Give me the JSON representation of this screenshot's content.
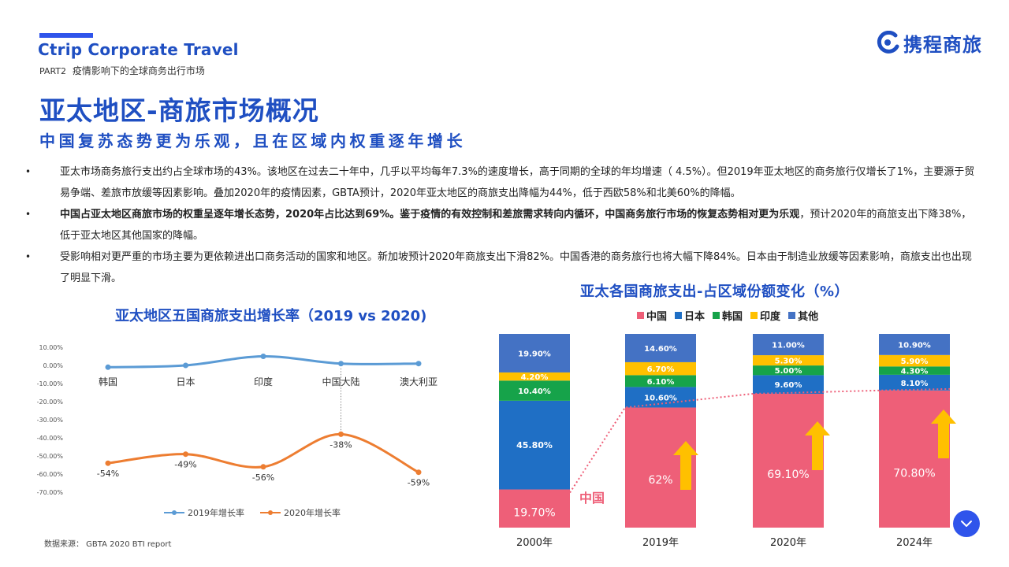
{
  "header": {
    "brand": "Ctrip Corporate Travel",
    "part_label": "PART2",
    "part_title": "疫情影响下的全球商务出行市场",
    "logo_text": "携程商旅"
  },
  "title": "亚太地区-商旅市场概况",
  "subtitle": "中国复苏态势更为乐观，且在区域内权重逐年增长",
  "bullets": [
    {
      "dot": "•",
      "parts": [
        {
          "text": "亚太市场商务旅行支出约占全球市场的43%。该地区在过去二十年中，几乎以平均每年7.3%的速度增长，高于同期的全球的年均增速（ 4.5%）。但2019年亚太地区的商务旅行仅增长了1%，主要源于贸易争端、差旅市放缓等因素影响。叠加2020年的疫情因素，GBTA预计，2020年亚太地区的商旅支出降幅为44%，低于西欧58%和北美60%的降幅。",
          "bold": false
        }
      ]
    },
    {
      "dot": "•",
      "parts": [
        {
          "text": "中国占亚太地区商旅市场的权重呈逐年增长态势，2020年占比达到69%。鉴于疫情的有效控制和差旅需求转向内循环，中国商务旅行市场的恢复态势相对更为乐观",
          "bold": true
        },
        {
          "text": "，预计2020年的商旅支出下降38%，低于亚太地区其他国家的降幅。",
          "bold": false
        }
      ]
    },
    {
      "dot": "•",
      "parts": [
        {
          "text": "受影响相对更严重的市场主要为更依赖进出口商务活动的国家和地区。新加坡预计2020年商旅支出下滑82%。中国香港的商务旅行也将大幅下降84%。日本由于制造业放缓等因素影响，商旅支出也出现了明显下滑。",
          "bold": false
        }
      ]
    }
  ],
  "source": "数据来源： GBTA 2020 BTI report",
  "colors": {
    "accent": "#1f4fc2",
    "line2019": "#5b9bd5",
    "line2020": "#ed7d31",
    "china": "#ee5f78",
    "japan": "#1f6fc5",
    "korea": "#16a34a",
    "india": "#ffc000",
    "other": "#4472c4",
    "arrow": "#ffc000",
    "dotted": "#ee5f78"
  },
  "chart_data": [
    {
      "type": "line",
      "title": "亚太地区五国商旅支出增长率（2019 vs 2020)",
      "categories": [
        "韩国",
        "日本",
        "印度",
        "中国大陆",
        "澳大利亚"
      ],
      "yticks": [
        "10.00%",
        "0.00%",
        "-10.00%",
        "-20.00%",
        "-30.00%",
        "-40.00%",
        "-50.00%",
        "-60.00%",
        "-70.00%"
      ],
      "ylim": [
        -70,
        10
      ],
      "series": [
        {
          "name": "2019年增长率",
          "values": [
            -1,
            0,
            5,
            1,
            1
          ]
        },
        {
          "name": "2020年增长率",
          "values": [
            -54,
            -49,
            -56,
            -38,
            -59
          ],
          "labels": [
            "-54%",
            "-49%",
            "-56%",
            "-38%",
            "-59%"
          ]
        }
      ],
      "legend": "bottom",
      "grid": false
    },
    {
      "type": "bar",
      "stacked": true,
      "title": "亚太各国商旅支出-占区域份额变化（%）",
      "categories": [
        "2000年",
        "2019年",
        "2020年",
        "2024年"
      ],
      "series": [
        {
          "name": "中国",
          "values": [
            19.7,
            62,
            69.1,
            70.8
          ],
          "labels": [
            "19.70%",
            "62%",
            "69.10%",
            "70.80%"
          ]
        },
        {
          "name": "日本",
          "values": [
            45.8,
            10.6,
            9.6,
            8.1
          ],
          "labels": [
            "45.80%",
            "10.60%",
            "9.60%",
            "8.10%"
          ]
        },
        {
          "name": "韩国",
          "values": [
            10.4,
            6.1,
            5.0,
            4.3
          ],
          "labels": [
            "10.40%",
            "6.10%",
            "5.00%",
            "4.30%"
          ]
        },
        {
          "name": "印度",
          "values": [
            4.2,
            6.7,
            5.3,
            5.9
          ],
          "labels": [
            "4.20%",
            "6.70%",
            "5.30%",
            "5.90%"
          ]
        },
        {
          "name": "其他",
          "values": [
            19.9,
            14.6,
            11.0,
            10.9
          ],
          "labels": [
            "19.90%",
            "14.60%",
            "11.00%",
            "10.90%"
          ]
        }
      ],
      "annotation": "中国",
      "legend": "top"
    }
  ]
}
